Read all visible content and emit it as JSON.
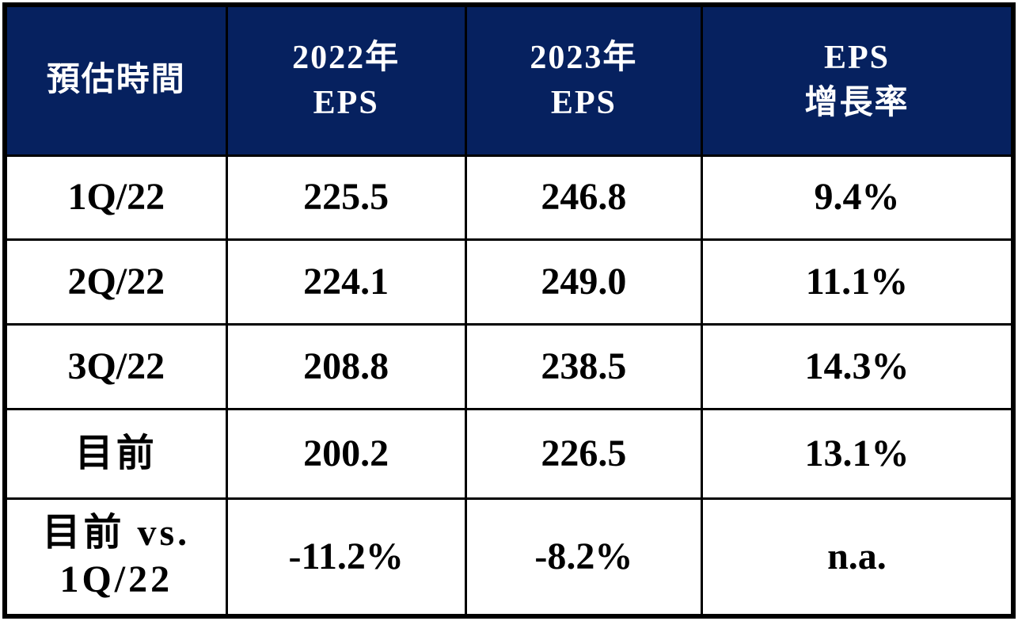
{
  "colors": {
    "header_bg": "#06215f",
    "header_text": "#ffffff",
    "body_text": "#000000",
    "border": "#000000",
    "page_bg": "#ffffff"
  },
  "table": {
    "headers": [
      {
        "label": "預估時間"
      },
      {
        "label": "2022年\nEPS"
      },
      {
        "label": "2023年\nEPS"
      },
      {
        "label": "EPS\n增長率"
      }
    ],
    "rows": [
      {
        "period": "1Q/22",
        "eps_2022": "225.5",
        "eps_2023": "246.8",
        "growth": "9.4%"
      },
      {
        "period": "2Q/22",
        "eps_2022": "224.1",
        "eps_2023": "249.0",
        "growth": "11.1%"
      },
      {
        "period": "3Q/22",
        "eps_2022": "208.8",
        "eps_2023": "238.5",
        "growth": "14.3%"
      },
      {
        "period": "目前",
        "eps_2022": "200.2",
        "eps_2023": "226.5",
        "growth": "13.1%"
      },
      {
        "period": "目前 vs.\n1Q/22",
        "eps_2022": "-11.2%",
        "eps_2023": "-8.2%",
        "growth": "n.a."
      }
    ]
  },
  "chart_data": {
    "type": "table",
    "columns": [
      "預估時間",
      "2022年 EPS",
      "2023年 EPS",
      "EPS 增長率"
    ],
    "rows": [
      [
        "1Q/22",
        "225.5",
        "246.8",
        "9.4%"
      ],
      [
        "2Q/22",
        "224.1",
        "249.0",
        "11.1%"
      ],
      [
        "3Q/22",
        "208.8",
        "238.5",
        "14.3%"
      ],
      [
        "目前",
        "200.2",
        "226.5",
        "13.1%"
      ],
      [
        "目前 vs. 1Q/22",
        "-11.2%",
        "-8.2%",
        "n.a."
      ]
    ]
  }
}
